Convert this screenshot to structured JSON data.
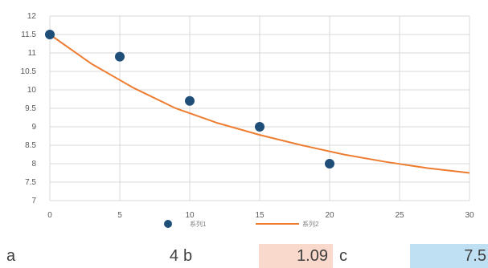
{
  "chart_data": {
    "type": "scatter",
    "title": "",
    "xlabel": "",
    "ylabel": "",
    "xlim": [
      0,
      30
    ],
    "ylim": [
      7,
      12
    ],
    "x_ticks": [
      "0",
      "5",
      "10",
      "15",
      "20",
      "25",
      "30"
    ],
    "y_ticks": [
      "7",
      "7.5",
      "8",
      "8.5",
      "9",
      "9.5",
      "10",
      "10.5",
      "11",
      "11.5",
      "12"
    ],
    "grid": true,
    "legend_position": "bottom",
    "series": [
      {
        "name": "系列1",
        "kind": "scatter",
        "color": "#1f4e79",
        "points": [
          [
            0,
            11.5
          ],
          [
            5,
            10.9
          ],
          [
            10,
            9.7
          ],
          [
            15,
            9.0
          ],
          [
            20,
            8.0
          ]
        ]
      },
      {
        "name": "系列2",
        "kind": "line",
        "color": "#ed7d31",
        "points": [
          [
            0,
            11.5
          ],
          [
            3,
            10.7
          ],
          [
            6,
            10.05
          ],
          [
            9,
            9.5
          ],
          [
            12,
            9.1
          ],
          [
            15,
            8.78
          ],
          [
            18,
            8.5
          ],
          [
            21,
            8.25
          ],
          [
            24,
            8.05
          ],
          [
            27,
            7.88
          ],
          [
            30,
            7.75
          ]
        ]
      }
    ]
  },
  "params": {
    "a_label": "a",
    "a_value": "4",
    "b_label": "b",
    "b_value": "1.09",
    "c_label": "c",
    "c_value": "7.5"
  },
  "colors": {
    "b_bg": "#f8d9cc",
    "c_bg": "#bfe0f2"
  }
}
